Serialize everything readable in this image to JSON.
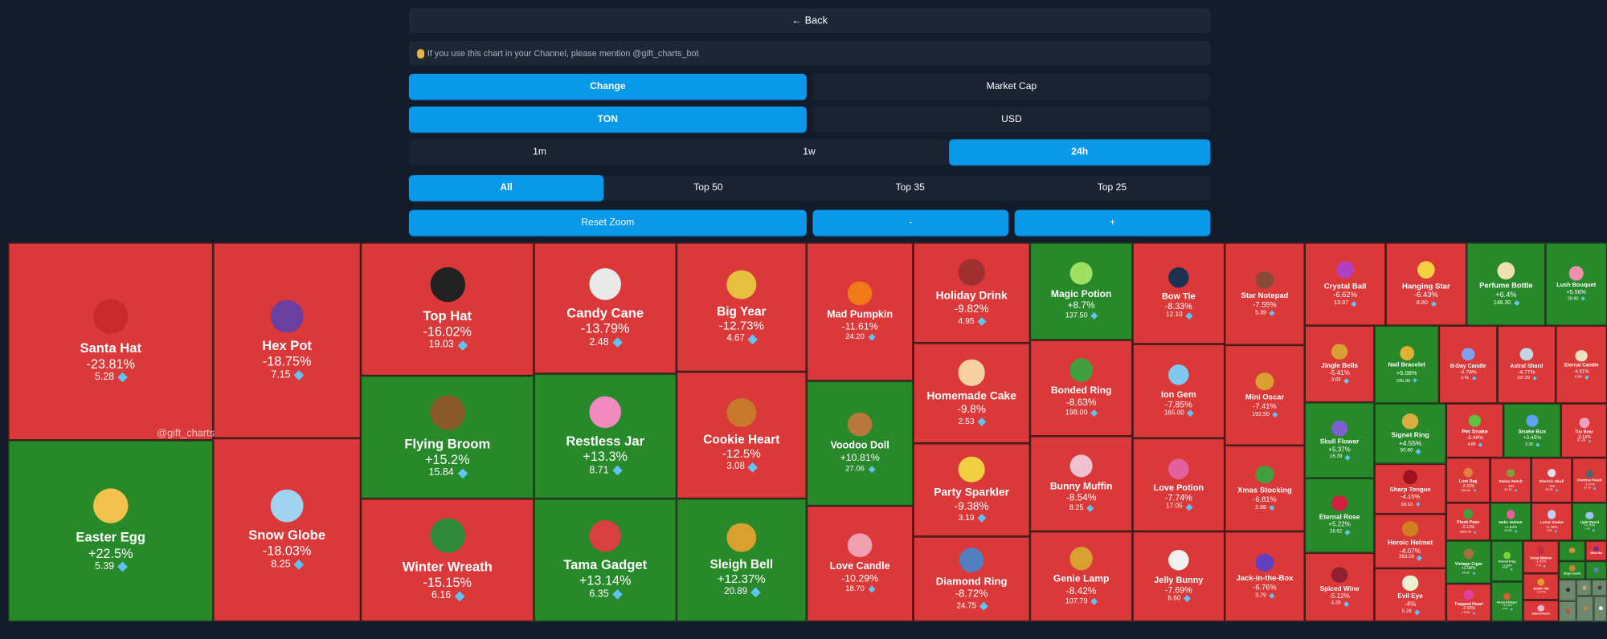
{
  "header": {
    "back_label": "← Back",
    "notice": "If you use this chart in your Channel, please mention @gift_charts_bot",
    "mode_options": [
      {
        "label": "Change",
        "active": true
      },
      {
        "label": "Market Cap",
        "active": false
      }
    ],
    "currency_options": [
      {
        "label": "TON",
        "active": true
      },
      {
        "label": "USD",
        "active": false
      }
    ],
    "period_options": [
      {
        "label": "1m",
        "active": false
      },
      {
        "label": "1w",
        "active": false
      },
      {
        "label": "24h",
        "active": true
      }
    ],
    "scope_options": [
      {
        "label": "All",
        "active": true
      },
      {
        "label": "Top 50",
        "active": false
      },
      {
        "label": "Top 35",
        "active": false
      },
      {
        "label": "Top 25",
        "active": false
      }
    ],
    "reset_zoom_label": "Reset Zoom",
    "zoom_out_label": "-",
    "zoom_in_label": "+"
  },
  "watermark": "@gift_charts",
  "colors": {
    "down": "#db383a",
    "up": "#27892a",
    "flat": "#6e8a6e",
    "accent": "#0a98e8",
    "background": "#141b2a",
    "currency_icon": "#5ec4f4"
  },
  "currency_icon": "ton-diamond-icon",
  "tiles": [
    {
      "name": "Santa Hat",
      "change": "-23.81%",
      "price": "5.28",
      "trend": "down",
      "icon": "#c92a2a"
    },
    {
      "name": "Easter Egg",
      "change": "+22.5%",
      "price": "5.39",
      "trend": "up",
      "icon": "#f2c14e"
    },
    {
      "name": "Hex Pot",
      "change": "-18.75%",
      "price": "7.15",
      "trend": "down",
      "icon": "#6b3fa0"
    },
    {
      "name": "Snow Globe",
      "change": "-18.03%",
      "price": "8.25",
      "trend": "down",
      "icon": "#9fd3f0"
    },
    {
      "name": "Top Hat",
      "change": "-16.02%",
      "price": "19.03",
      "trend": "down",
      "icon": "#222222"
    },
    {
      "name": "Flying Broom",
      "change": "+15.2%",
      "price": "15.84",
      "trend": "up",
      "icon": "#8a5a2b"
    },
    {
      "name": "Winter Wreath",
      "change": "-15.15%",
      "price": "6.16",
      "trend": "down",
      "icon": "#2f8a3a"
    },
    {
      "name": "Candy Cane",
      "change": "-13.79%",
      "price": "2.48",
      "trend": "down",
      "icon": "#e9e9e9"
    },
    {
      "name": "Restless Jar",
      "change": "+13.3%",
      "price": "8.71",
      "trend": "up",
      "icon": "#f08ac0"
    },
    {
      "name": "Tama Gadget",
      "change": "+13.14%",
      "price": "6.35",
      "trend": "up",
      "icon": "#d94040"
    },
    {
      "name": "Big Year",
      "change": "-12.73%",
      "price": "4.67",
      "trend": "down",
      "icon": "#e8c040"
    },
    {
      "name": "Cookie Heart",
      "change": "-12.5%",
      "price": "3.08",
      "trend": "down",
      "icon": "#c8782a"
    },
    {
      "name": "Sleigh Bell",
      "change": "+12.37%",
      "price": "20.89",
      "trend": "up",
      "icon": "#d8a030"
    },
    {
      "name": "Mad Pumpkin",
      "change": "-11.61%",
      "price": "24.20",
      "trend": "down",
      "icon": "#f07a1a"
    },
    {
      "name": "Voodoo Doll",
      "change": "+10.81%",
      "price": "27.06",
      "trend": "up",
      "icon": "#b8783a"
    },
    {
      "name": "Love Candle",
      "change": "-10.29%",
      "price": "18.70",
      "trend": "down",
      "icon": "#f0a0b0"
    },
    {
      "name": "Holiday Drink",
      "change": "-9.82%",
      "price": "4.95",
      "trend": "down",
      "icon": "#a03030"
    },
    {
      "name": "Homemade Cake",
      "change": "-9.8%",
      "price": "2.53",
      "trend": "down",
      "icon": "#f5d0a0"
    },
    {
      "name": "Party Sparkler",
      "change": "-9.38%",
      "price": "3.19",
      "trend": "down",
      "icon": "#f0d040"
    },
    {
      "name": "Diamond Ring",
      "change": "-8.72%",
      "price": "24.75",
      "trend": "down",
      "icon": "#5080c0"
    },
    {
      "name": "Magic Potion",
      "change": "+8.7%",
      "price": "137.50",
      "trend": "up",
      "icon": "#a0e060"
    },
    {
      "name": "Bonded Ring",
      "change": "-8.63%",
      "price": "198.00",
      "trend": "down",
      "icon": "#40a040"
    },
    {
      "name": "Bunny Muffin",
      "change": "-8.54%",
      "price": "8.25",
      "trend": "down",
      "icon": "#f0c0d0"
    },
    {
      "name": "Genie Lamp",
      "change": "-8.42%",
      "price": "107.79",
      "trend": "down",
      "icon": "#d8a030"
    },
    {
      "name": "Bow Tie",
      "change": "-8.33%",
      "price": "12.10",
      "trend": "down",
      "icon": "#203050"
    },
    {
      "name": "Ion Gem",
      "change": "-7.85%",
      "price": "165.00",
      "trend": "down",
      "icon": "#80c8f0"
    },
    {
      "name": "Love Potion",
      "change": "-7.74%",
      "price": "17.05",
      "trend": "down",
      "icon": "#e060a0"
    },
    {
      "name": "Jelly Bunny",
      "change": "-7.69%",
      "price": "6.60",
      "trend": "down",
      "icon": "#f0f0f0"
    },
    {
      "name": "Star Notepad",
      "change": "-7.55%",
      "price": "5.39",
      "trend": "down",
      "icon": "#8a4a3a"
    },
    {
      "name": "Mini Oscar",
      "change": "-7.41%",
      "price": "192.50",
      "trend": "down",
      "icon": "#d8a030"
    },
    {
      "name": "Xmas Stocking",
      "change": "-6.81%",
      "price": "2.88",
      "trend": "down",
      "icon": "#40a040"
    },
    {
      "name": "Jack-in-the-Box",
      "change": "-6.76%",
      "price": "3.79",
      "trend": "down",
      "icon": "#6040c0"
    },
    {
      "name": "Crystal Ball",
      "change": "-6.62%",
      "price": "13.97",
      "trend": "down",
      "icon": "#b040c0"
    },
    {
      "name": "Hanging Star",
      "change": "-6.43%",
      "price": "8.80",
      "trend": "down",
      "icon": "#f5d040"
    },
    {
      "name": "Perfume Bottle",
      "change": "+6.4%",
      "price": "146.30",
      "trend": "up",
      "icon": "#f0e0b0"
    },
    {
      "name": "Lush Bouquet",
      "change": "+5.56%",
      "price": "20.90",
      "trend": "up",
      "icon": "#f090b0"
    },
    {
      "name": "Jingle Bells",
      "change": "-5.41%",
      "price": "3.85",
      "trend": "down",
      "icon": "#d8a030"
    },
    {
      "name": "Skull Flower",
      "change": "+5.37%",
      "price": "16.39",
      "trend": "up",
      "icon": "#8060d0"
    },
    {
      "name": "Eternal Rose",
      "change": "+5.22%",
      "price": "26.62",
      "trend": "up",
      "icon": "#d02040"
    },
    {
      "name": "Spiced Wine",
      "change": "-5.12%",
      "price": "4.28",
      "trend": "down",
      "icon": "#902030"
    },
    {
      "name": "Nail Bracelet",
      "change": "+5.08%",
      "price": "295.90",
      "trend": "up",
      "icon": "#e0b030"
    },
    {
      "name": "B-Day Candle",
      "change": "-4.78%",
      "price": "2.41",
      "trend": "down",
      "icon": "#80a0f0"
    },
    {
      "name": "Astral Shard",
      "change": "-4.77%",
      "price": "197.99",
      "trend": "down",
      "icon": "#c0d8e0"
    },
    {
      "name": "Eternal Candle",
      "change": "-4.61%",
      "price": "6.60",
      "trend": "down",
      "icon": "#f0e0c0"
    },
    {
      "name": "Signet Ring",
      "change": "+4.55%",
      "price": "50.60",
      "trend": "up",
      "icon": "#d8b040"
    },
    {
      "name": "Sharp Tongue",
      "change": "-4.15%",
      "price": "68.53",
      "trend": "down",
      "icon": "#a01020"
    },
    {
      "name": "Heroic Helmet",
      "change": "-4.07%",
      "price": "363.00",
      "trend": "down",
      "icon": "#d08020"
    },
    {
      "name": "Evil Eye",
      "change": "-4%",
      "price": "5.28",
      "trend": "down",
      "icon": "#f0f0d0"
    },
    {
      "name": "Pet Snake",
      "change": "-3.48%",
      "price": "4.88",
      "trend": "down",
      "icon": "#60c040"
    },
    {
      "name": "Snake Box",
      "change": "+3.45%",
      "price": "3.30",
      "trend": "up",
      "icon": "#60a0f0"
    },
    {
      "name": "Toy Bear",
      "change": "-3.14%",
      "price": "37.29",
      "trend": "down",
      "icon": "#f0a0c0"
    },
    {
      "name": "Loot Bag",
      "change": "-2.33%",
      "price": "136.60",
      "trend": "down",
      "icon": "#e08040"
    },
    {
      "name": "Swiss Watch",
      "change": "-2%",
      "price": "59.18",
      "trend": "down",
      "icon": "#80a040"
    },
    {
      "name": "Electric Skull",
      "change": "-2%",
      "price": "53.90",
      "trend": "down",
      "icon": "#e0e0f0"
    },
    {
      "name": "Precious Peach",
      "change": "-1.97%",
      "price": "657.80",
      "trend": "down",
      "icon": "#606060"
    },
    {
      "name": "Plush Pepe",
      "change": "-2.13%",
      "price": "5060.00",
      "trend": "down",
      "icon": "#40a040"
    },
    {
      "name": "Neko Helmet",
      "change": "+1.84%",
      "price": "54.89",
      "trend": "up",
      "icon": "#e060a0"
    },
    {
      "name": "Lunar Snake",
      "change": "-1.79%",
      "price": "2.42",
      "trend": "down",
      "icon": "#c0d0f0"
    },
    {
      "name": "Light Sword",
      "change": "+1.75%",
      "price": "6.38",
      "trend": "up",
      "icon": "#a0c0f0"
    },
    {
      "name": "Vintage Cigar",
      "change": "+2.08%",
      "price": "53.90",
      "trend": "up",
      "icon": "#a07040"
    },
    {
      "name": "Trapped Heart",
      "change": "-2.03%",
      "price": "15.95",
      "trend": "down",
      "icon": "#e040a0"
    },
    {
      "name": "Kissed Frog",
      "change": "+1.88%",
      "price": "67.58",
      "trend": "up",
      "icon": "#80d040"
    },
    {
      "name": "Record Player",
      "change": "+1.53%",
      "price": "14.83",
      "trend": "up",
      "icon": "#d06030"
    },
    {
      "name": "Snow Mittens",
      "change": "-1.41%",
      "price": "7.70",
      "trend": "down",
      "icon": "#c03040"
    },
    {
      "name": "Jester Hat",
      "change": "-1.07%",
      "trend": "down",
      "icon": "#e0a030"
    },
    {
      "name": "Sakura Flower",
      "trend": "down",
      "icon": "#f0b0d0"
    },
    {
      "trend": "up",
      "icon": "#e08a40"
    },
    {
      "name": "Witch Hat",
      "trend": "down",
      "icon": "#6030a0"
    },
    {
      "name": "Ginger Cookie",
      "trend": "up",
      "icon": "#d08030"
    },
    {
      "trend": "up",
      "icon": "#6080c0"
    },
    {
      "trend": "flat",
      "icon": "#303030"
    },
    {
      "trend": "flat",
      "icon": "#d0a080"
    },
    {
      "trend": "flat",
      "icon": "#404040"
    },
    {
      "trend": "flat",
      "icon": "#d04040"
    },
    {
      "trend": "flat",
      "icon": "#d08040"
    },
    {
      "trend": "flat",
      "icon": "#f0f0f0"
    }
  ]
}
